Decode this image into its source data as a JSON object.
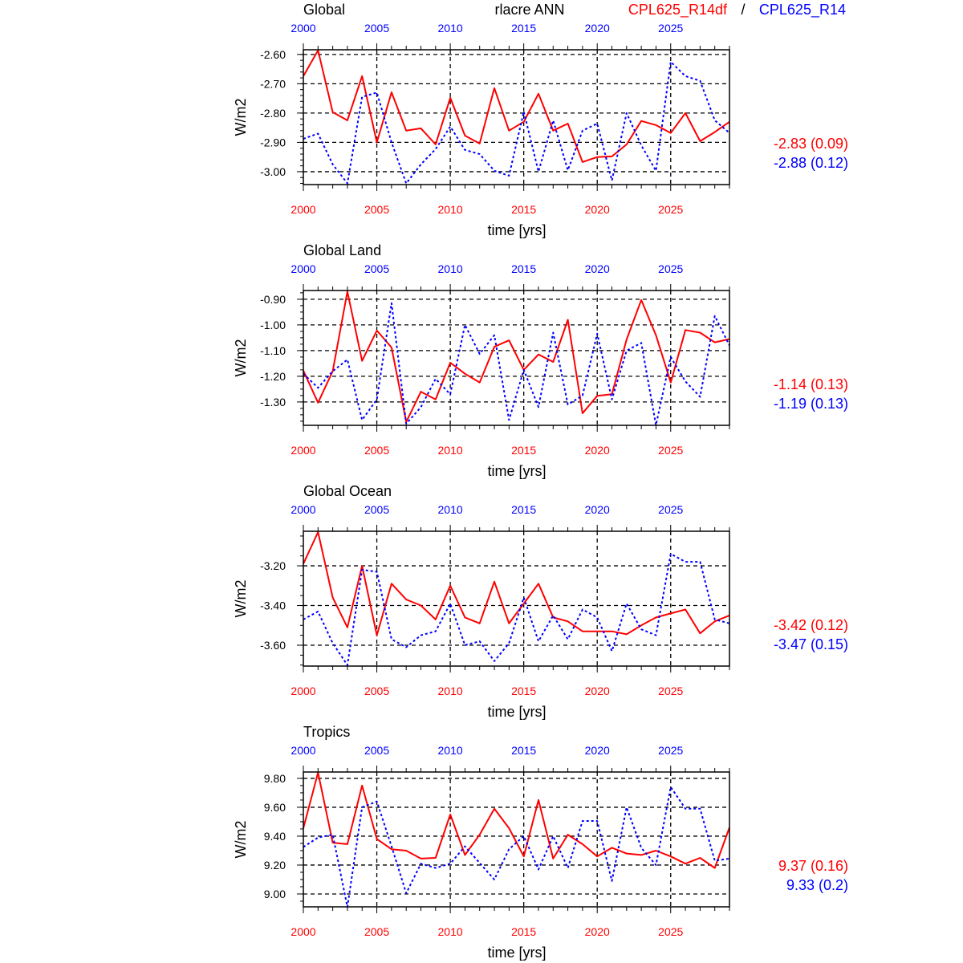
{
  "header": {
    "title": "rlacre ANN",
    "legend_red": "CPL625_R14df",
    "legend_sep": "/",
    "legend_blue": "CPL625_R14"
  },
  "colors": {
    "red": "#ff0000",
    "blue": "#0000ff",
    "grid": "#000000"
  },
  "chart_data": [
    {
      "type": "line",
      "title": "Global",
      "xlabel": "time [yrs]",
      "ylabel": "W/m2",
      "x": [
        2000,
        2001,
        2002,
        2003,
        2004,
        2005,
        2006,
        2007,
        2008,
        2009,
        2010,
        2011,
        2012,
        2013,
        2014,
        2015,
        2016,
        2017,
        2018,
        2019,
        2020,
        2021,
        2022,
        2023,
        2024,
        2025,
        2026,
        2027,
        2028,
        2029
      ],
      "xticks": [
        "2000",
        "2005",
        "2010",
        "2015",
        "2020",
        "2025"
      ],
      "yticks": [
        "-2.60",
        "-2.70",
        "-2.80",
        "-2.90",
        "-3.00"
      ],
      "ytick_values": [
        -2.6,
        -2.7,
        -2.8,
        -2.9,
        -3.0
      ],
      "ylim": [
        -3.044,
        -2.584
      ],
      "yminor": 0.02,
      "series": [
        {
          "name": "CPL625_R14df",
          "color": "red",
          "style": "solid",
          "stat": "-2.83 (0.09)",
          "values": [
            -2.674,
            -2.586,
            -2.797,
            -2.825,
            -2.674,
            -2.9,
            -2.729,
            -2.86,
            -2.852,
            -2.907,
            -2.748,
            -2.877,
            -2.904,
            -2.715,
            -2.86,
            -2.83,
            -2.734,
            -2.86,
            -2.836,
            -2.967,
            -2.95,
            -2.948,
            -2.907,
            -2.827,
            -2.841,
            -2.868,
            -2.8,
            -2.896,
            -2.865,
            -2.83
          ]
        },
        {
          "name": "CPL625_R14",
          "color": "blue",
          "style": "dashed",
          "stat": "-2.88 (0.12)",
          "values": [
            -2.888,
            -2.87,
            -2.975,
            -3.04,
            -2.745,
            -2.73,
            -2.9,
            -3.04,
            -2.975,
            -2.923,
            -2.846,
            -2.926,
            -2.94,
            -2.997,
            -3.014,
            -2.795,
            -3.0,
            -2.825,
            -2.995,
            -2.86,
            -2.836,
            -3.03,
            -2.8,
            -2.91,
            -2.997,
            -2.625,
            -2.674,
            -2.69,
            -2.825,
            -2.868
          ]
        }
      ]
    },
    {
      "type": "line",
      "title": "Global Land",
      "xlabel": "time [yrs]",
      "ylabel": "W/m2",
      "x": [
        2000,
        2001,
        2002,
        2003,
        2004,
        2005,
        2006,
        2007,
        2008,
        2009,
        2010,
        2011,
        2012,
        2013,
        2014,
        2015,
        2016,
        2017,
        2018,
        2019,
        2020,
        2021,
        2022,
        2023,
        2024,
        2025,
        2026,
        2027,
        2028,
        2029
      ],
      "xticks": [
        "2000",
        "2005",
        "2010",
        "2015",
        "2020",
        "2025"
      ],
      "yticks": [
        "-0.90",
        "-1.00",
        "-1.10",
        "-1.20",
        "-1.30"
      ],
      "ytick_values": [
        -0.9,
        -1.0,
        -1.1,
        -1.2,
        -1.3
      ],
      "ylim": [
        -1.391,
        -0.866
      ],
      "yminor": 0.025,
      "series": [
        {
          "name": "CPL625_R14df",
          "color": "red",
          "style": "solid",
          "stat": "-1.14 (0.13)",
          "values": [
            -1.178,
            -1.303,
            -1.18,
            -0.87,
            -1.14,
            -1.022,
            -1.088,
            -1.378,
            -1.26,
            -1.29,
            -1.147,
            -1.19,
            -1.224,
            -1.085,
            -1.06,
            -1.175,
            -1.115,
            -1.144,
            -0.98,
            -1.344,
            -1.276,
            -1.27,
            -1.057,
            -0.903,
            -1.04,
            -1.224,
            -1.02,
            -1.03,
            -1.068,
            -1.055
          ]
        },
        {
          "name": "CPL625_R14",
          "color": "blue",
          "style": "dashed",
          "stat": "-1.19 (0.13)",
          "values": [
            -1.19,
            -1.245,
            -1.18,
            -1.135,
            -1.37,
            -1.29,
            -0.915,
            -1.385,
            -1.32,
            -1.21,
            -1.27,
            -1.0,
            -1.113,
            -1.04,
            -1.37,
            -1.175,
            -1.32,
            -1.03,
            -1.31,
            -1.275,
            -1.034,
            -1.29,
            -1.1,
            -1.07,
            -1.39,
            -1.125,
            -1.22,
            -1.28,
            -0.965,
            -1.08
          ]
        }
      ]
    },
    {
      "type": "line",
      "title": "Global Ocean",
      "xlabel": "time [yrs]",
      "ylabel": "W/m2",
      "x": [
        2000,
        2001,
        2002,
        2003,
        2004,
        2005,
        2006,
        2007,
        2008,
        2009,
        2010,
        2011,
        2012,
        2013,
        2014,
        2015,
        2016,
        2017,
        2018,
        2019,
        2020,
        2021,
        2022,
        2023,
        2024,
        2025,
        2026,
        2027,
        2028,
        2029
      ],
      "xticks": [
        "2000",
        "2005",
        "2010",
        "2015",
        "2020",
        "2025"
      ],
      "yticks": [
        "-3.20",
        "-3.40",
        "-3.60"
      ],
      "ytick_values": [
        -3.2,
        -3.4,
        -3.6
      ],
      "ylim": [
        -3.705,
        -3.026
      ],
      "yminor": 0.05,
      "series": [
        {
          "name": "CPL625_R14df",
          "color": "red",
          "style": "solid",
          "stat": "-3.42 (0.12)",
          "values": [
            -3.19,
            -3.03,
            -3.36,
            -3.51,
            -3.2,
            -3.55,
            -3.29,
            -3.37,
            -3.4,
            -3.47,
            -3.3,
            -3.46,
            -3.49,
            -3.28,
            -3.49,
            -3.39,
            -3.29,
            -3.46,
            -3.48,
            -3.53,
            -3.53,
            -3.53,
            -3.545,
            -3.5,
            -3.46,
            -3.44,
            -3.42,
            -3.54,
            -3.48,
            -3.45
          ]
        },
        {
          "name": "CPL625_R14",
          "color": "blue",
          "style": "dashed",
          "stat": "-3.47 (0.15)",
          "values": [
            -3.47,
            -3.43,
            -3.59,
            -3.7,
            -3.22,
            -3.23,
            -3.57,
            -3.61,
            -3.55,
            -3.53,
            -3.39,
            -3.6,
            -3.58,
            -3.68,
            -3.59,
            -3.36,
            -3.58,
            -3.45,
            -3.57,
            -3.42,
            -3.46,
            -3.63,
            -3.39,
            -3.52,
            -3.55,
            -3.14,
            -3.18,
            -3.18,
            -3.47,
            -3.49
          ]
        }
      ]
    },
    {
      "type": "line",
      "title": "Tropics",
      "xlabel": "time [yrs]",
      "ylabel": "W/m2",
      "x": [
        2000,
        2001,
        2002,
        2003,
        2004,
        2005,
        2006,
        2007,
        2008,
        2009,
        2010,
        2011,
        2012,
        2013,
        2014,
        2015,
        2016,
        2017,
        2018,
        2019,
        2020,
        2021,
        2022,
        2023,
        2024,
        2025,
        2026,
        2027,
        2028,
        2029
      ],
      "xticks": [
        "2000",
        "2005",
        "2010",
        "2015",
        "2020",
        "2025"
      ],
      "yticks": [
        "9.80",
        "9.60",
        "9.40",
        "9.20",
        "9.00"
      ],
      "ytick_values": [
        9.8,
        9.6,
        9.4,
        9.2,
        9.0
      ],
      "ylim": [
        8.911,
        9.844
      ],
      "yminor": 0.05,
      "series": [
        {
          "name": "CPL625_R14df",
          "color": "red",
          "style": "solid",
          "stat": "9.37 (0.16)",
          "values": [
            9.455,
            9.84,
            9.355,
            9.345,
            9.75,
            9.38,
            9.31,
            9.3,
            9.245,
            9.25,
            9.55,
            9.27,
            9.41,
            9.59,
            9.455,
            9.26,
            9.65,
            9.245,
            9.41,
            9.345,
            9.26,
            9.32,
            9.28,
            9.27,
            9.3,
            9.26,
            9.21,
            9.25,
            9.18,
            9.46
          ]
        },
        {
          "name": "CPL625_R14",
          "color": "blue",
          "style": "dashed",
          "stat": "9.33 (0.2)",
          "values": [
            9.325,
            9.39,
            9.41,
            8.91,
            9.6,
            9.64,
            9.33,
            9.005,
            9.21,
            9.18,
            9.21,
            9.33,
            9.215,
            9.1,
            9.31,
            9.4,
            9.17,
            9.4,
            9.18,
            9.505,
            9.505,
            9.09,
            9.6,
            9.32,
            9.2,
            9.74,
            9.59,
            9.59,
            9.23,
            9.245
          ]
        }
      ]
    }
  ]
}
